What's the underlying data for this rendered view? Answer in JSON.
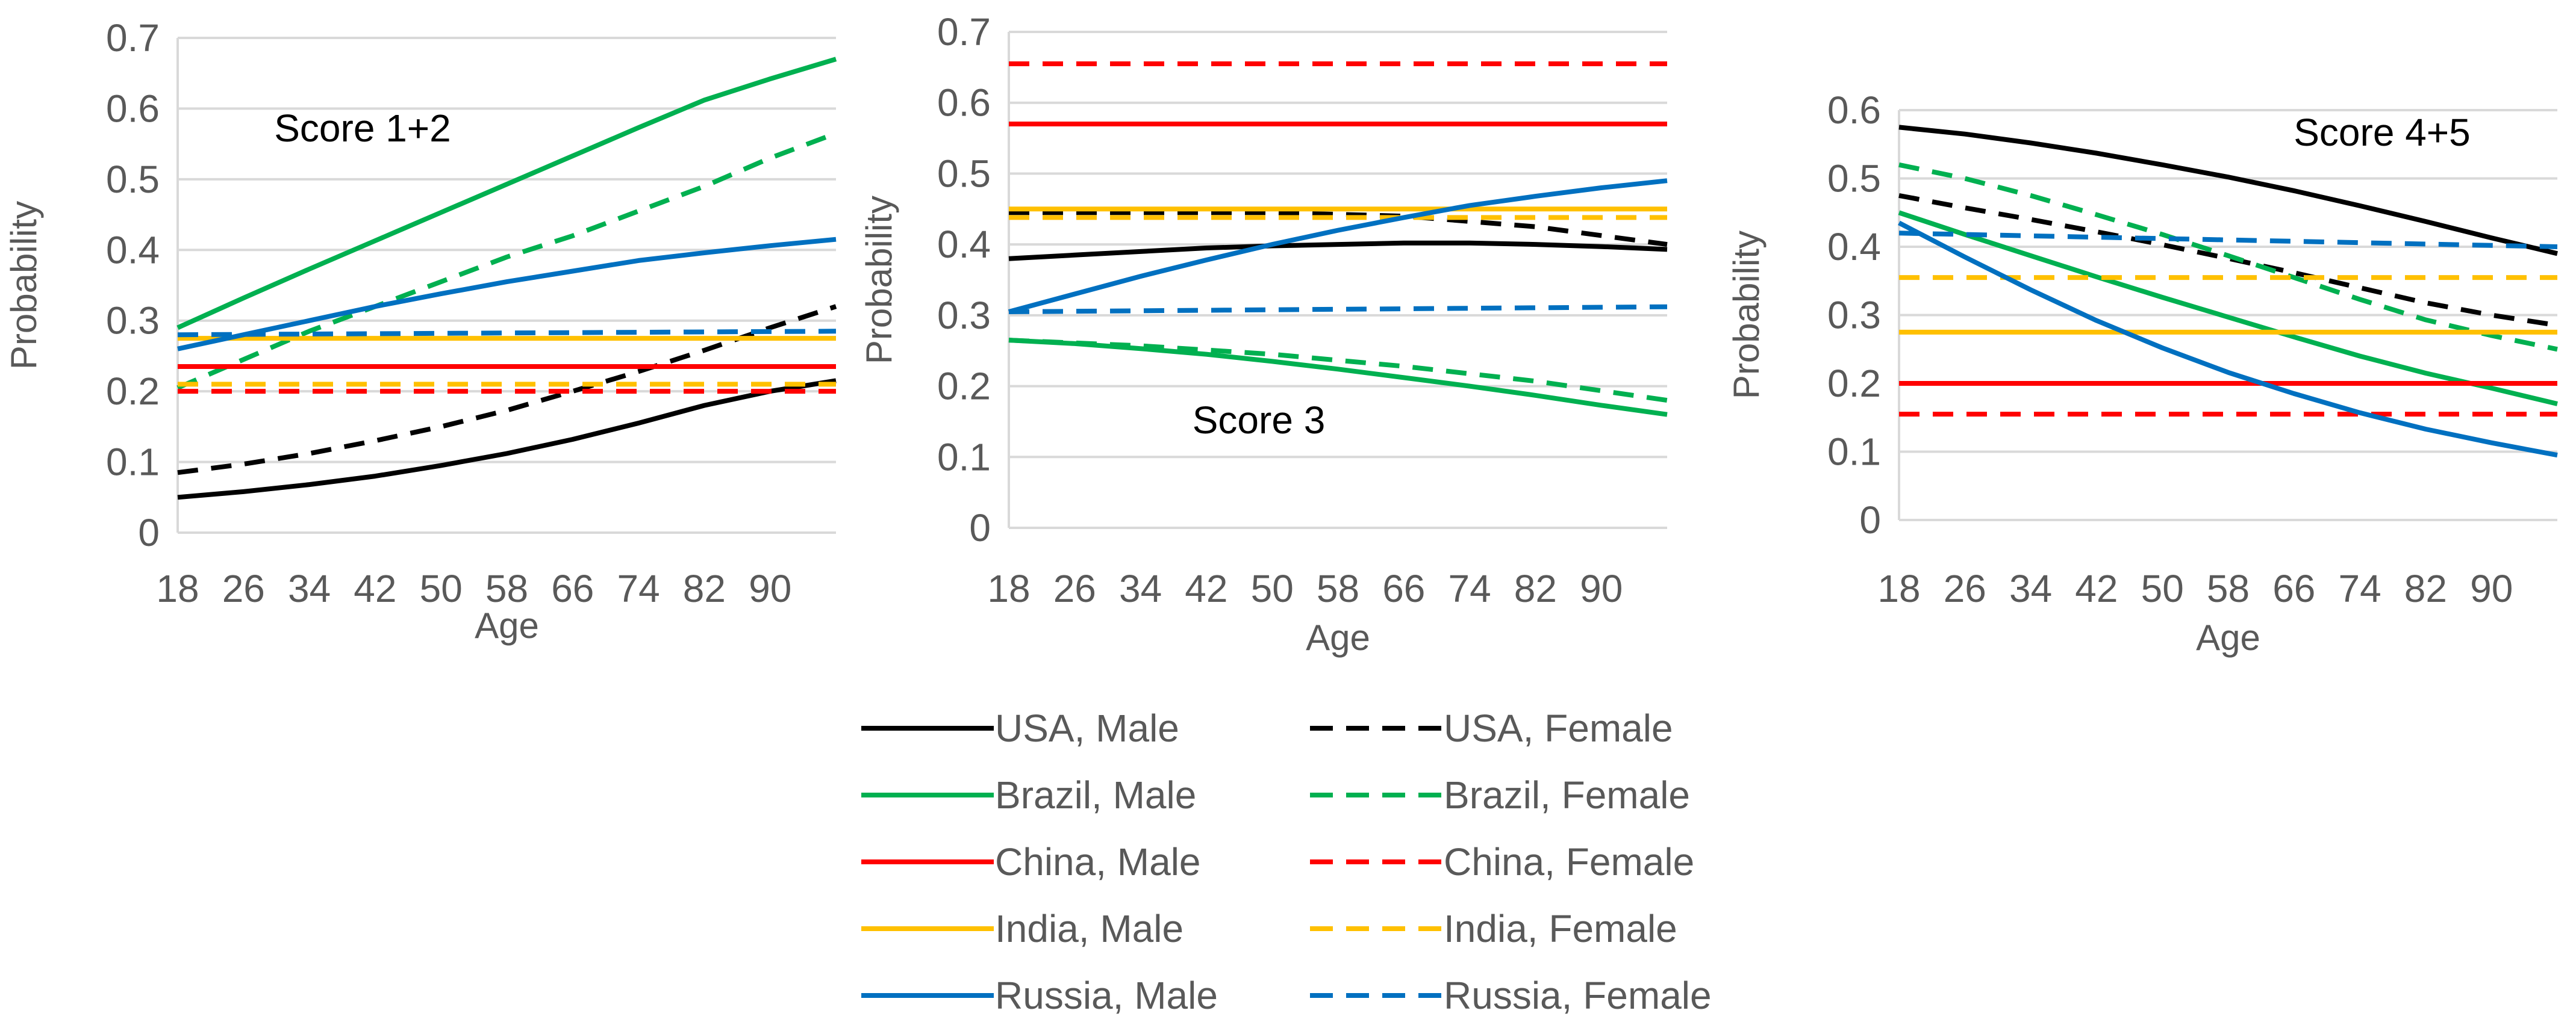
{
  "chart_data": [
    {
      "type": "line",
      "annotation": "Score 1+2",
      "xlabel": "Age",
      "ylabel": "Probability",
      "x_ticks": [
        18,
        26,
        34,
        42,
        50,
        58,
        66,
        74,
        82,
        90
      ],
      "xlim": [
        18,
        98
      ],
      "ylim": [
        0,
        0.7
      ],
      "y_ticks": [
        "0",
        "0.1",
        "0.2",
        "0.3",
        "0.4",
        "0.5",
        "0.6",
        "0.7"
      ],
      "y_step": 0.1,
      "grid": true,
      "series": [
        {
          "name": "USA, Male",
          "color": "#000000",
          "dash": false,
          "points": [
            [
              18,
              0.05
            ],
            [
              26,
              0.058
            ],
            [
              34,
              0.068
            ],
            [
              42,
              0.08
            ],
            [
              50,
              0.095
            ],
            [
              58,
              0.112
            ],
            [
              66,
              0.132
            ],
            [
              74,
              0.155
            ],
            [
              82,
              0.18
            ],
            [
              90,
              0.2
            ],
            [
              98,
              0.215
            ]
          ]
        },
        {
          "name": "USA, Female",
          "color": "#000000",
          "dash": true,
          "points": [
            [
              18,
              0.085
            ],
            [
              26,
              0.097
            ],
            [
              34,
              0.112
            ],
            [
              42,
              0.13
            ],
            [
              50,
              0.15
            ],
            [
              58,
              0.173
            ],
            [
              66,
              0.2
            ],
            [
              74,
              0.228
            ],
            [
              82,
              0.258
            ],
            [
              90,
              0.29
            ],
            [
              98,
              0.32
            ]
          ]
        },
        {
          "name": "Brazil, Male",
          "color": "#00B050",
          "dash": false,
          "points": [
            [
              18,
              0.29
            ],
            [
              26,
              0.332
            ],
            [
              34,
              0.373
            ],
            [
              42,
              0.413
            ],
            [
              50,
              0.453
            ],
            [
              58,
              0.493
            ],
            [
              66,
              0.533
            ],
            [
              74,
              0.573
            ],
            [
              82,
              0.612
            ],
            [
              90,
              0.642
            ],
            [
              98,
              0.67
            ]
          ]
        },
        {
          "name": "Brazil, Female",
          "color": "#00B050",
          "dash": true,
          "points": [
            [
              18,
              0.205
            ],
            [
              26,
              0.245
            ],
            [
              34,
              0.285
            ],
            [
              42,
              0.32
            ],
            [
              50,
              0.355
            ],
            [
              58,
              0.39
            ],
            [
              66,
              0.42
            ],
            [
              74,
              0.455
            ],
            [
              82,
              0.49
            ],
            [
              90,
              0.53
            ],
            [
              98,
              0.565
            ]
          ]
        },
        {
          "name": "China, Male",
          "color": "#FF0000",
          "dash": false,
          "points": [
            [
              18,
              0.235
            ],
            [
              98,
              0.235
            ]
          ]
        },
        {
          "name": "China, Female",
          "color": "#FF0000",
          "dash": true,
          "points": [
            [
              18,
              0.2
            ],
            [
              98,
              0.2
            ]
          ]
        },
        {
          "name": "India, Male",
          "color": "#FFC000",
          "dash": false,
          "points": [
            [
              18,
              0.275
            ],
            [
              98,
              0.275
            ]
          ]
        },
        {
          "name": "India, Female",
          "color": "#FFC000",
          "dash": true,
          "points": [
            [
              18,
              0.21
            ],
            [
              98,
              0.21
            ]
          ]
        },
        {
          "name": "Russia, Male",
          "color": "#0070C0",
          "dash": false,
          "points": [
            [
              18,
              0.26
            ],
            [
              26,
              0.28
            ],
            [
              34,
              0.3
            ],
            [
              42,
              0.32
            ],
            [
              50,
              0.338
            ],
            [
              58,
              0.355
            ],
            [
              66,
              0.37
            ],
            [
              74,
              0.385
            ],
            [
              82,
              0.396
            ],
            [
              90,
              0.406
            ],
            [
              98,
              0.415
            ]
          ]
        },
        {
          "name": "Russia, Female",
          "color": "#0070C0",
          "dash": true,
          "points": [
            [
              18,
              0.28
            ],
            [
              98,
              0.285
            ]
          ]
        }
      ]
    },
    {
      "type": "line",
      "annotation": "Score 3",
      "xlabel": "Age",
      "ylabel": "Probability",
      "x_ticks": [
        18,
        26,
        34,
        42,
        50,
        58,
        66,
        74,
        82,
        90
      ],
      "xlim": [
        18,
        98
      ],
      "ylim": [
        0,
        0.7
      ],
      "y_ticks": [
        "0",
        "0.1",
        "0.2",
        "0.3",
        "0.4",
        "0.5",
        "0.6",
        "0.7"
      ],
      "y_step": 0.1,
      "grid": true,
      "series": [
        {
          "name": "USA, Male",
          "color": "#000000",
          "dash": false,
          "points": [
            [
              18,
              0.38
            ],
            [
              26,
              0.385
            ],
            [
              34,
              0.39
            ],
            [
              42,
              0.395
            ],
            [
              50,
              0.398
            ],
            [
              58,
              0.4
            ],
            [
              66,
              0.402
            ],
            [
              74,
              0.402
            ],
            [
              82,
              0.4
            ],
            [
              90,
              0.397
            ],
            [
              98,
              0.393
            ]
          ]
        },
        {
          "name": "USA, Female",
          "color": "#000000",
          "dash": true,
          "points": [
            [
              18,
              0.445
            ],
            [
              34,
              0.445
            ],
            [
              50,
              0.445
            ],
            [
              66,
              0.44
            ],
            [
              82,
              0.425
            ],
            [
              98,
              0.4
            ]
          ]
        },
        {
          "name": "Brazil, Male",
          "color": "#00B050",
          "dash": false,
          "points": [
            [
              18,
              0.265
            ],
            [
              26,
              0.26
            ],
            [
              34,
              0.253
            ],
            [
              42,
              0.245
            ],
            [
              50,
              0.235
            ],
            [
              58,
              0.224
            ],
            [
              66,
              0.212
            ],
            [
              74,
              0.2
            ],
            [
              82,
              0.187
            ],
            [
              90,
              0.173
            ],
            [
              98,
              0.16
            ]
          ]
        },
        {
          "name": "Brazil, Female",
          "color": "#00B050",
          "dash": true,
          "points": [
            [
              18,
              0.265
            ],
            [
              34,
              0.257
            ],
            [
              50,
              0.245
            ],
            [
              66,
              0.228
            ],
            [
              82,
              0.207
            ],
            [
              98,
              0.18
            ]
          ]
        },
        {
          "name": "China, Male",
          "color": "#FF0000",
          "dash": false,
          "points": [
            [
              18,
              0.57
            ],
            [
              98,
              0.57
            ]
          ]
        },
        {
          "name": "China, Female",
          "color": "#FF0000",
          "dash": true,
          "points": [
            [
              18,
              0.655
            ],
            [
              98,
              0.655
            ]
          ]
        },
        {
          "name": "India, Male",
          "color": "#FFC000",
          "dash": false,
          "points": [
            [
              18,
              0.45
            ],
            [
              98,
              0.45
            ]
          ]
        },
        {
          "name": "India, Female",
          "color": "#FFC000",
          "dash": true,
          "points": [
            [
              18,
              0.438
            ],
            [
              98,
              0.438
            ]
          ]
        },
        {
          "name": "Russia, Male",
          "color": "#0070C0",
          "dash": false,
          "points": [
            [
              18,
              0.305
            ],
            [
              26,
              0.33
            ],
            [
              34,
              0.355
            ],
            [
              42,
              0.378
            ],
            [
              50,
              0.4
            ],
            [
              58,
              0.42
            ],
            [
              66,
              0.438
            ],
            [
              74,
              0.455
            ],
            [
              82,
              0.468
            ],
            [
              90,
              0.48
            ],
            [
              98,
              0.49
            ]
          ]
        },
        {
          "name": "Russia, Female",
          "color": "#0070C0",
          "dash": true,
          "points": [
            [
              18,
              0.305
            ],
            [
              98,
              0.312
            ]
          ]
        }
      ]
    },
    {
      "type": "line",
      "annotation": "Score 4+5",
      "xlabel": "Age",
      "ylabel": "Probability",
      "x_ticks": [
        18,
        26,
        34,
        42,
        50,
        58,
        66,
        74,
        82,
        90
      ],
      "xlim": [
        18,
        98
      ],
      "ylim": [
        0,
        0.6
      ],
      "y_ticks": [
        "0",
        "0.1",
        "0.2",
        "0.3",
        "0.4",
        "0.5",
        "0.6"
      ],
      "y_step": 0.1,
      "grid": true,
      "series": [
        {
          "name": "USA, Male",
          "color": "#000000",
          "dash": false,
          "points": [
            [
              18,
              0.575
            ],
            [
              26,
              0.565
            ],
            [
              34,
              0.552
            ],
            [
              42,
              0.537
            ],
            [
              50,
              0.52
            ],
            [
              58,
              0.502
            ],
            [
              66,
              0.482
            ],
            [
              74,
              0.46
            ],
            [
              82,
              0.437
            ],
            [
              90,
              0.413
            ],
            [
              98,
              0.39
            ]
          ]
        },
        {
          "name": "USA, Female",
          "color": "#000000",
          "dash": true,
          "points": [
            [
              18,
              0.475
            ],
            [
              26,
              0.457
            ],
            [
              34,
              0.44
            ],
            [
              42,
              0.422
            ],
            [
              50,
              0.403
            ],
            [
              58,
              0.383
            ],
            [
              66,
              0.362
            ],
            [
              74,
              0.34
            ],
            [
              82,
              0.318
            ],
            [
              90,
              0.3
            ],
            [
              98,
              0.285
            ]
          ]
        },
        {
          "name": "Brazil, Male",
          "color": "#00B050",
          "dash": false,
          "points": [
            [
              18,
              0.45
            ],
            [
              26,
              0.418
            ],
            [
              34,
              0.387
            ],
            [
              42,
              0.356
            ],
            [
              50,
              0.326
            ],
            [
              58,
              0.297
            ],
            [
              66,
              0.268
            ],
            [
              74,
              0.24
            ],
            [
              82,
              0.215
            ],
            [
              90,
              0.193
            ],
            [
              98,
              0.17
            ]
          ]
        },
        {
          "name": "Brazil, Female",
          "color": "#00B050",
          "dash": true,
          "points": [
            [
              18,
              0.52
            ],
            [
              26,
              0.5
            ],
            [
              34,
              0.475
            ],
            [
              42,
              0.447
            ],
            [
              50,
              0.418
            ],
            [
              58,
              0.387
            ],
            [
              66,
              0.355
            ],
            [
              74,
              0.323
            ],
            [
              82,
              0.293
            ],
            [
              90,
              0.27
            ],
            [
              98,
              0.25
            ]
          ]
        },
        {
          "name": "China, Male",
          "color": "#FF0000",
          "dash": false,
          "points": [
            [
              18,
              0.2
            ],
            [
              98,
              0.2
            ]
          ]
        },
        {
          "name": "China, Female",
          "color": "#FF0000",
          "dash": true,
          "points": [
            [
              18,
              0.155
            ],
            [
              98,
              0.155
            ]
          ]
        },
        {
          "name": "India, Male",
          "color": "#FFC000",
          "dash": false,
          "points": [
            [
              18,
              0.275
            ],
            [
              98,
              0.275
            ]
          ]
        },
        {
          "name": "India, Female",
          "color": "#FFC000",
          "dash": true,
          "points": [
            [
              18,
              0.355
            ],
            [
              98,
              0.355
            ]
          ]
        },
        {
          "name": "Russia, Male",
          "color": "#0070C0",
          "dash": false,
          "points": [
            [
              18,
              0.435
            ],
            [
              26,
              0.385
            ],
            [
              34,
              0.337
            ],
            [
              42,
              0.292
            ],
            [
              50,
              0.252
            ],
            [
              58,
              0.216
            ],
            [
              66,
              0.185
            ],
            [
              74,
              0.157
            ],
            [
              82,
              0.133
            ],
            [
              90,
              0.113
            ],
            [
              98,
              0.095
            ]
          ]
        },
        {
          "name": "Russia, Female",
          "color": "#0070C0",
          "dash": true,
          "points": [
            [
              18,
              0.42
            ],
            [
              98,
              0.4
            ]
          ]
        }
      ]
    }
  ],
  "legend": {
    "placement": "bottom-center",
    "items": [
      {
        "label": "USA, Male",
        "color": "#000000",
        "dash": false
      },
      {
        "label": "USA, Female",
        "color": "#000000",
        "dash": true
      },
      {
        "label": "Brazil, Male",
        "color": "#00B050",
        "dash": false
      },
      {
        "label": "Brazil, Female",
        "color": "#00B050",
        "dash": true
      },
      {
        "label": "China, Male",
        "color": "#FF0000",
        "dash": false
      },
      {
        "label": "China, Female",
        "color": "#FF0000",
        "dash": true
      },
      {
        "label": "India, Male",
        "color": "#FFC000",
        "dash": false
      },
      {
        "label": "India, Female",
        "color": "#FFC000",
        "dash": true
      },
      {
        "label": "Russia, Male",
        "color": "#0070C0",
        "dash": false
      },
      {
        "label": "Russia, Female",
        "color": "#0070C0",
        "dash": true
      }
    ]
  },
  "colors": {
    "grid": "#D9D9D9",
    "axis_text": "#595959"
  }
}
